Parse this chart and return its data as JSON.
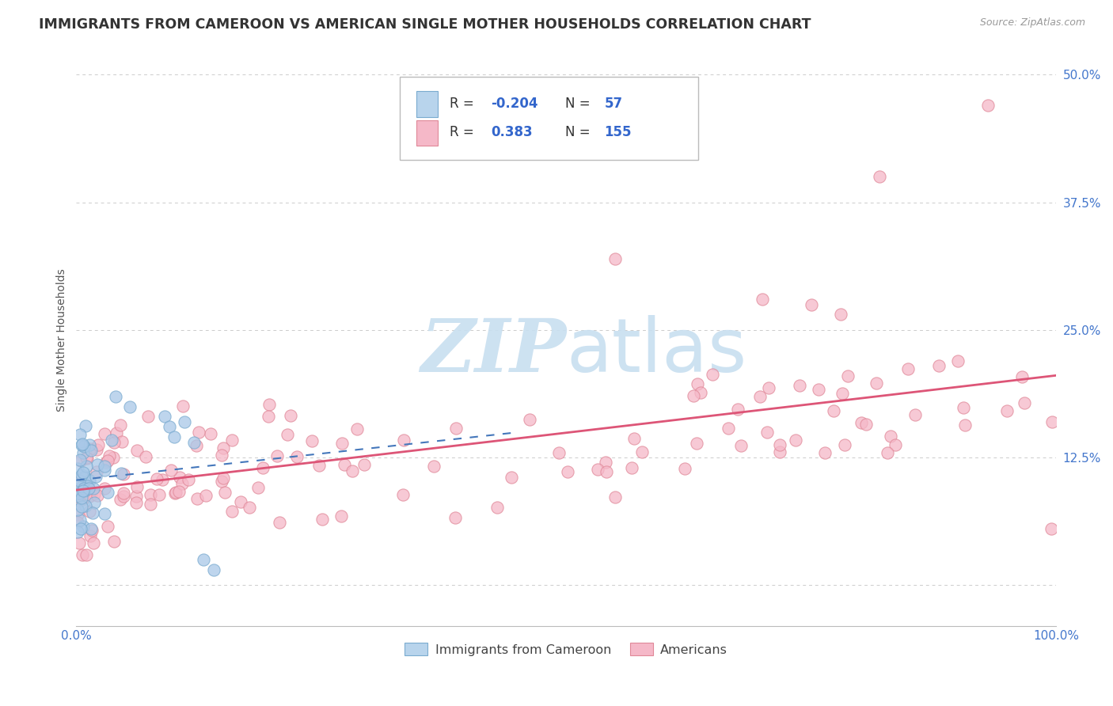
{
  "title": "IMMIGRANTS FROM CAMEROON VS AMERICAN SINGLE MOTHER HOUSEHOLDS CORRELATION CHART",
  "source": "Source: ZipAtlas.com",
  "ylabel": "Single Mother Households",
  "xmin": 0.0,
  "xmax": 1.0,
  "ymin": -0.04,
  "ymax": 0.52,
  "yticks": [
    0.0,
    0.125,
    0.25,
    0.375,
    0.5
  ],
  "ytick_labels": [
    "",
    "12.5%",
    "25.0%",
    "37.5%",
    "50.0%"
  ],
  "bg_color": "#ffffff",
  "grid_color": "#cccccc",
  "blue_dot_color": "#a8c8e8",
  "blue_dot_edge": "#7aabcf",
  "pink_dot_color": "#f5b8c8",
  "pink_dot_edge": "#e08898",
  "blue_line_color": "#4477bb",
  "pink_line_color": "#dd5577",
  "blue_legend_fill": "#b8d4ec",
  "blue_legend_edge": "#7aabcf",
  "pink_legend_fill": "#f5b8c8",
  "pink_legend_edge": "#e08898",
  "watermark_color": "#c8dff0",
  "title_color": "#333333",
  "source_color": "#999999",
  "ylabel_color": "#555555",
  "tick_color": "#4477cc",
  "title_fontsize": 12.5,
  "tick_fontsize": 11,
  "ylabel_fontsize": 10,
  "scatter_size": 120,
  "scatter_alpha": 0.75,
  "scatter_linewidth": 0.8
}
